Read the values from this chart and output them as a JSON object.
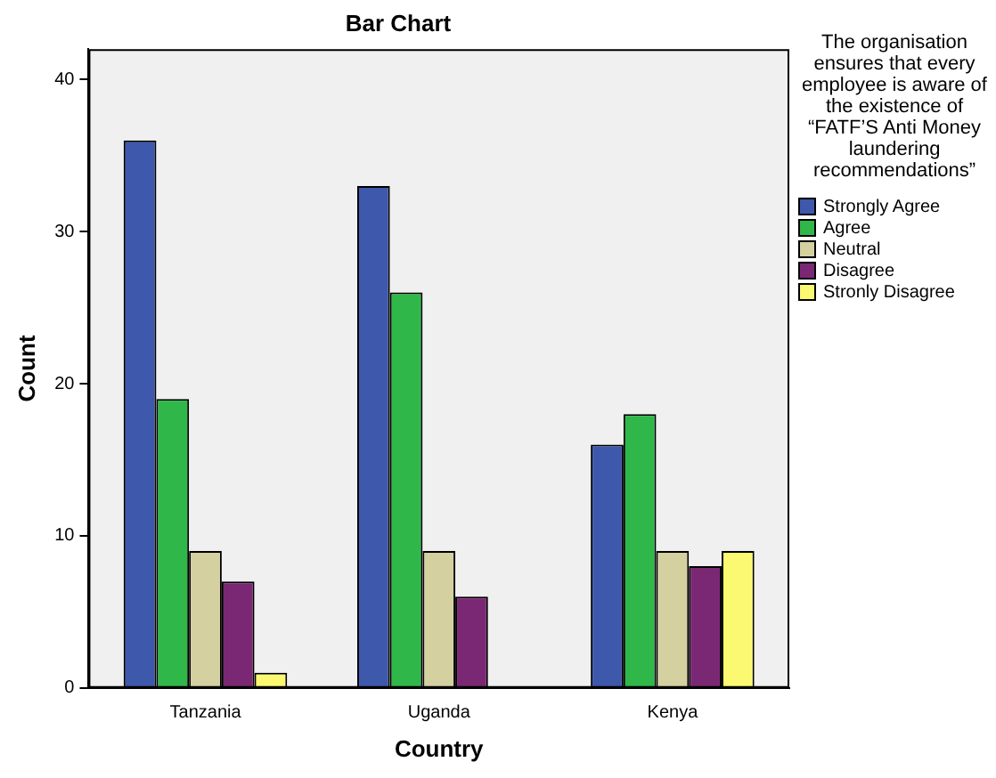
{
  "chart_data": {
    "type": "bar",
    "title": "Bar Chart",
    "xlabel": "Country",
    "ylabel": "Count",
    "legend_title": "The organisation ensures that every employee is aware of the existence of “FATF’S Anti Money laundering recommendations”",
    "categories": [
      "Tanzania",
      "Uganda",
      "Kenya"
    ],
    "series": [
      {
        "name": "Strongly Agree",
        "color": "#3e58ac",
        "values": [
          36,
          33,
          16
        ]
      },
      {
        "name": "Agree",
        "color": "#2fb74a",
        "values": [
          19,
          26,
          18
        ]
      },
      {
        "name": "Neutral",
        "color": "#d5d0a0",
        "values": [
          9,
          9,
          9
        ]
      },
      {
        "name": "Disagree",
        "color": "#7b2874",
        "values": [
          7,
          6,
          8
        ]
      },
      {
        "name": "Stronly Disagree",
        "color": "#fbf871",
        "values": [
          1,
          null,
          9
        ]
      }
    ],
    "ylim": [
      0,
      42
    ],
    "yticks": [
      0,
      10,
      20,
      30,
      40
    ],
    "grid": false,
    "legend": "right"
  }
}
